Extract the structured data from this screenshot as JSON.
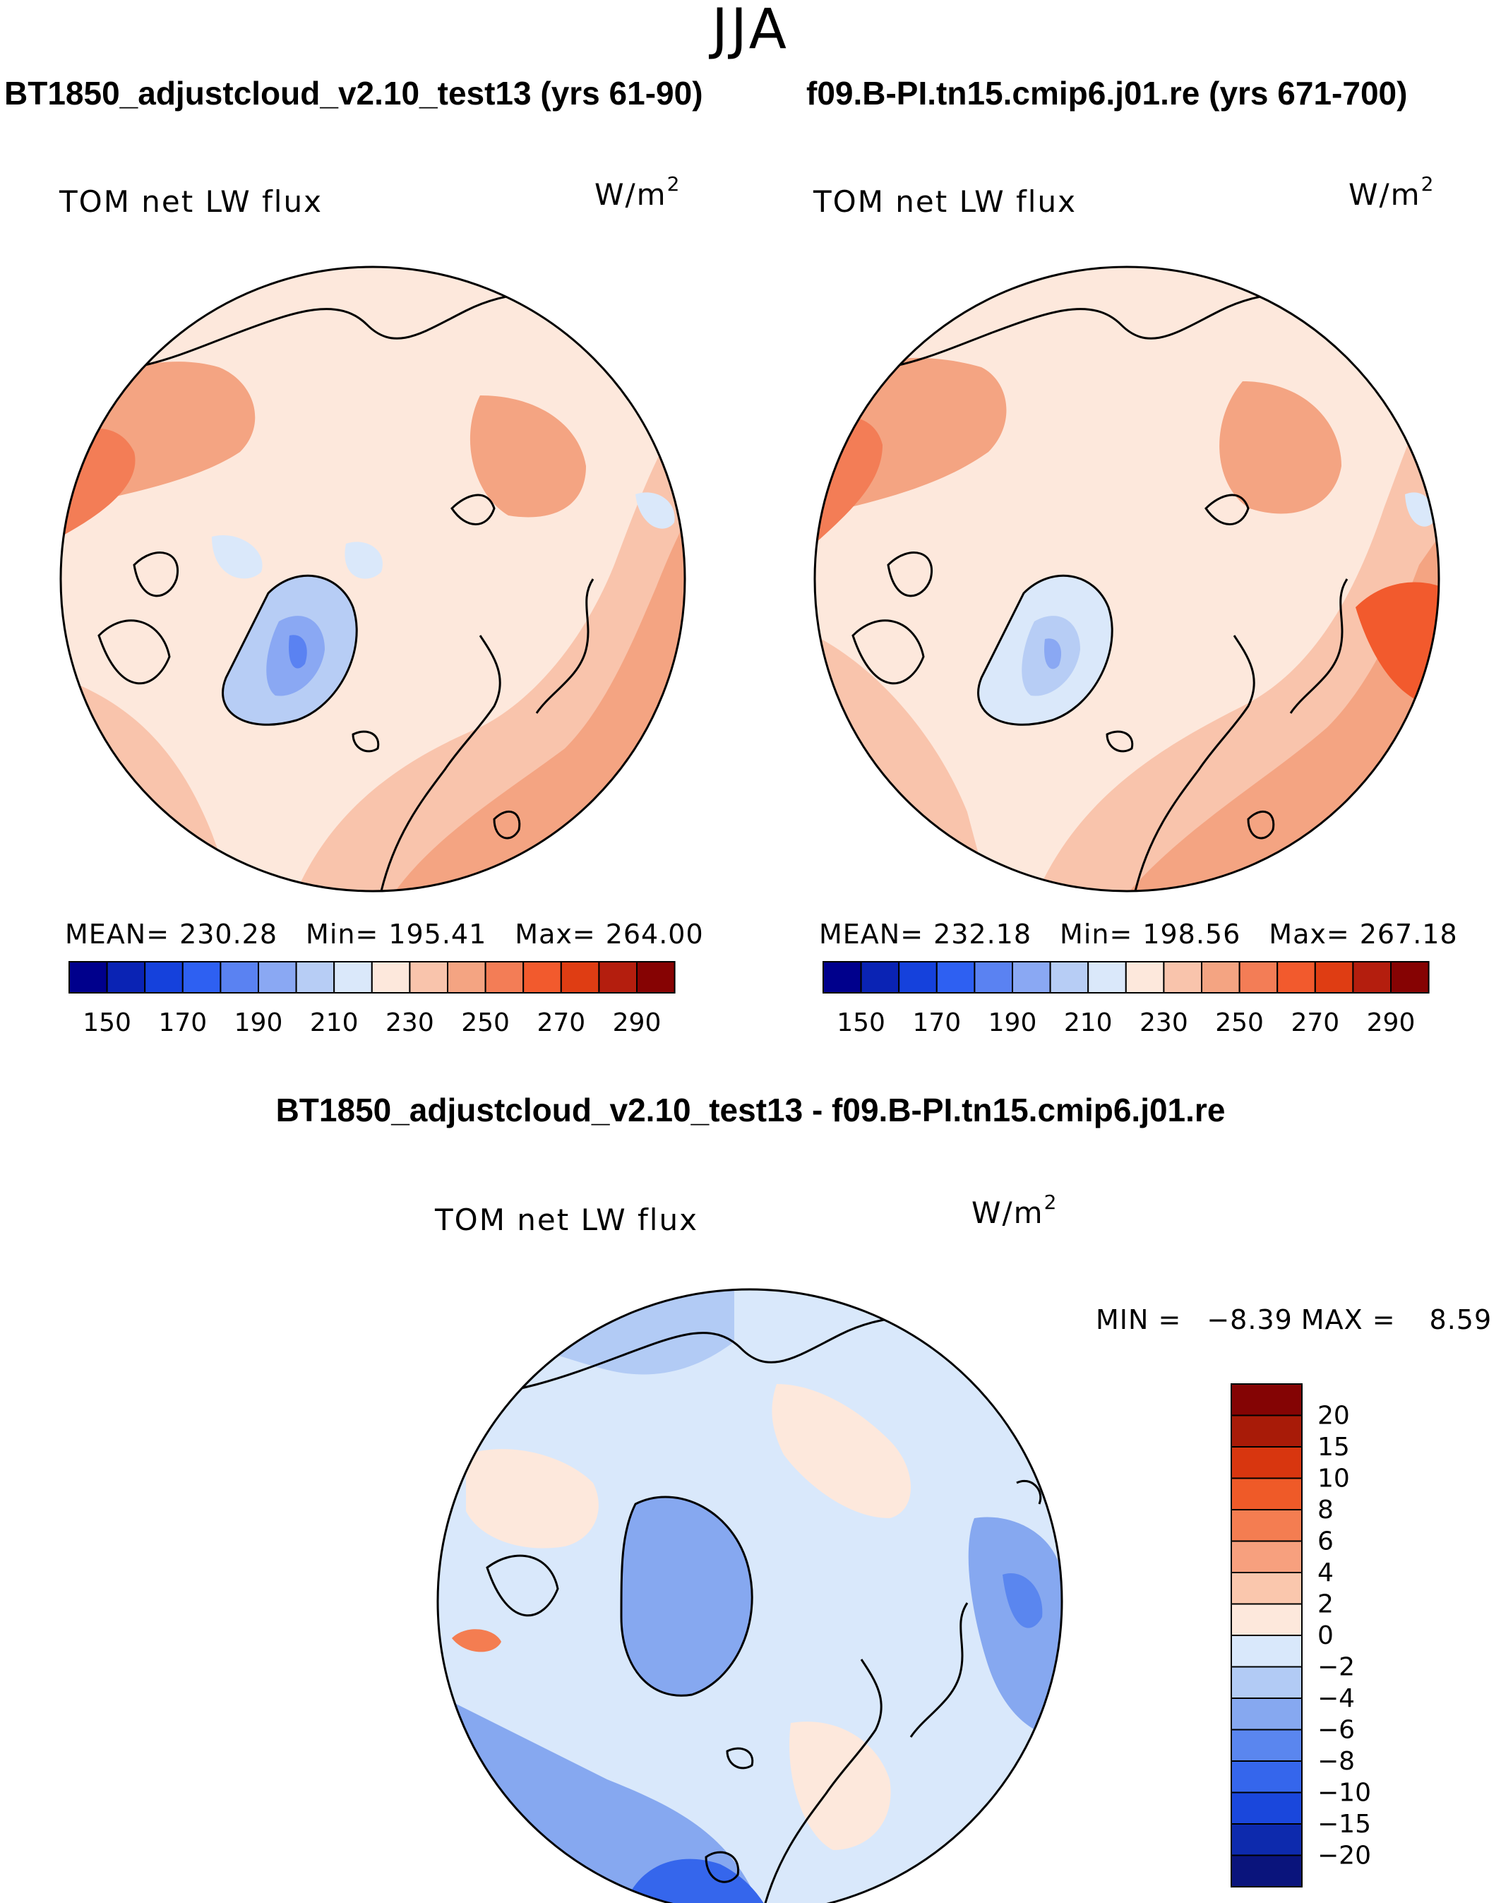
{
  "figure": {
    "season": "JJA",
    "colors": {
      "seq": [
        "#00008c",
        "#0a23b4",
        "#1541dc",
        "#2e60f2",
        "#5a82f2",
        "#8aa8f3",
        "#b7cdf5",
        "#dae8fa",
        "#fde8dc",
        "#f9c4ac",
        "#f4a482",
        "#f37d56",
        "#f25a2d",
        "#df3d13",
        "#b41e0e",
        "#860303"
      ],
      "diff": [
        "#0a147c",
        "#0d2aad",
        "#1a47dc",
        "#3566ec",
        "#5a86ef",
        "#86a8f0",
        "#b2cbf5",
        "#d9e8fb",
        "#fde8dc",
        "#fac7ad",
        "#f7a07e",
        "#f47d51",
        "#ef5a28",
        "#d8360f",
        "#a81b08",
        "#840404"
      ],
      "land": "#000000"
    }
  },
  "chart_data": [
    {
      "type": "heatmap",
      "panel": "left",
      "title": "BT1850_adjustcloud_v2.10_test13 (yrs 61-90)",
      "label": "TOM net LW flux",
      "units_base": "W/m",
      "units_exp": "2",
      "stats": {
        "mean": "MEAN=",
        "mean_val": "230.28",
        "min": "Min=",
        "min_val": "195.41",
        "max": "Max=",
        "max_val": "264.00"
      },
      "mean": 230.28,
      "min": 195.41,
      "max": 264.0,
      "colorbar_levels": [
        145,
        150,
        160,
        170,
        180,
        190,
        200,
        210,
        220,
        230,
        240,
        250,
        260,
        270,
        280,
        290
      ],
      "colorbar_ticks": [
        "150",
        "170",
        "190",
        "210",
        "230",
        "250",
        "270",
        "290"
      ]
    },
    {
      "type": "heatmap",
      "panel": "right",
      "title": "f09.B-PI.tn15.cmip6.j01.re (yrs 671-700)",
      "label": "TOM net LW flux",
      "units_base": "W/m",
      "units_exp": "2",
      "stats": {
        "mean": "MEAN=",
        "mean_val": "232.18",
        "min": "Min=",
        "min_val": "198.56",
        "max": "Max=",
        "max_val": "267.18"
      },
      "mean": 232.18,
      "min": 198.56,
      "max": 267.18,
      "colorbar_levels": [
        145,
        150,
        160,
        170,
        180,
        190,
        200,
        210,
        220,
        230,
        240,
        250,
        260,
        270,
        280,
        290
      ],
      "colorbar_ticks": [
        "150",
        "170",
        "190",
        "210",
        "230",
        "250",
        "270",
        "290"
      ]
    },
    {
      "type": "heatmap",
      "panel": "difference",
      "title": "BT1850_adjustcloud_v2.10_test13 - f09.B-PI.tn15.cmip6.j01.re",
      "label": "TOM net LW flux",
      "units_base": "W/m",
      "units_exp": "2",
      "stats": {
        "min": "MIN =",
        "min_val": "−8.39",
        "max": "MAX =",
        "max_val": "8.59"
      },
      "min": -8.39,
      "max": 8.59,
      "colorbar_ticks": [
        "20",
        "15",
        "10",
        "8",
        "6",
        "4",
        "2",
        "0",
        "−2",
        "−4",
        "−6",
        "−8",
        "−10",
        "−15",
        "−20"
      ]
    }
  ]
}
